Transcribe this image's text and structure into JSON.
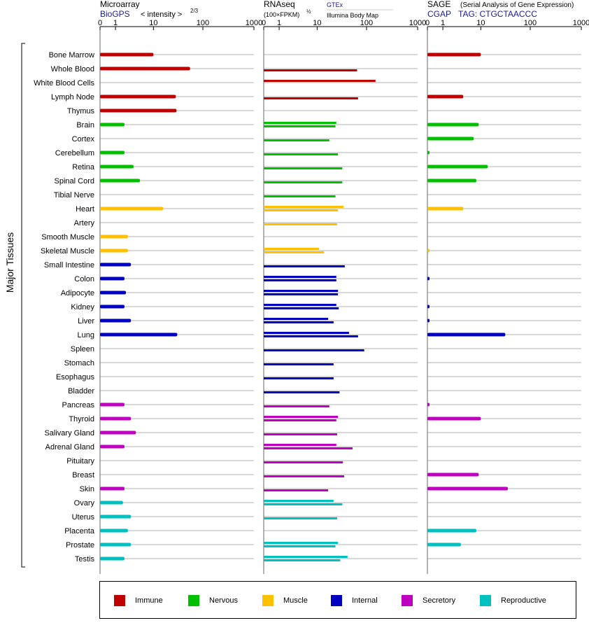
{
  "legend": [
    {
      "label": "Immune",
      "color": "#c00000"
    },
    {
      "label": "Nervous",
      "color": "#00c000"
    },
    {
      "label": "Muscle",
      "color": "#ffc000"
    },
    {
      "label": "Internal",
      "color": "#0000c0"
    },
    {
      "label": "Secretory",
      "color": "#c000c0"
    },
    {
      "label": "Reproductive",
      "color": "#00c0c0"
    }
  ],
  "chart_data": {
    "type": "bar",
    "ylabel": "Major Tissues",
    "categories": [
      "Bone Marrow",
      "Whole Blood",
      "White Blood Cells",
      "Lymph Node",
      "Thymus",
      "Brain",
      "Cortex",
      "Cerebellum",
      "Retina",
      "Spinal Cord",
      "Tibial Nerve",
      "Heart",
      "Artery",
      "Smooth Muscle",
      "Skeletal Muscle",
      "Small Intestine",
      "Colon",
      "Adipocyte",
      "Kidney",
      "Liver",
      "Lung",
      "Spleen",
      "Stomach",
      "Esophagus",
      "Bladder",
      "Pancreas",
      "Thyroid",
      "Salivary Gland",
      "Adrenal Gland",
      "Pituitary",
      "Breast",
      "Skin",
      "Ovary",
      "Uterus",
      "Placenta",
      "Prostate",
      "Testis"
    ],
    "groups": [
      "Immune",
      "Immune",
      "Immune",
      "Immune",
      "Immune",
      "Nervous",
      "Nervous",
      "Nervous",
      "Nervous",
      "Nervous",
      "Nervous",
      "Muscle",
      "Muscle",
      "Muscle",
      "Muscle",
      "Internal",
      "Internal",
      "Internal",
      "Internal",
      "Internal",
      "Internal",
      "Internal",
      "Internal",
      "Internal",
      "Internal",
      "Secretory",
      "Secretory",
      "Secretory",
      "Secretory",
      "Secretory",
      "Secretory",
      "Secretory",
      "Reproductive",
      "Reproductive",
      "Reproductive",
      "Reproductive",
      "Reproductive"
    ],
    "panels": [
      {
        "title": "Microarray",
        "subtitle": "BioGPS",
        "axis_note": "< intensity >",
        "axis_note_exp": "2/3",
        "ticks": [
          0,
          1,
          10,
          100,
          1000
        ],
        "xlim": [
          0,
          1000
        ],
        "series": [
          {
            "values": [
              10,
              56,
              null,
              29,
              30,
              2,
              null,
              2,
              3.5,
              5,
              null,
              16,
              null,
              2.5,
              2.5,
              3,
              2,
              2.2,
              2,
              3,
              31,
              null,
              null,
              null,
              null,
              2,
              3,
              4,
              2,
              null,
              null,
              2,
              1.8,
              3,
              2.5,
              3,
              2
            ]
          }
        ]
      },
      {
        "title": "RNAseq",
        "subtitle": "(100×FPKM)",
        "subtitle_exp": "½",
        "extra_title": "GTEx",
        "extra_label": "Illumina Body Map",
        "ticks": [
          0,
          1,
          10,
          100,
          1000
        ],
        "xlim": [
          0,
          1000
        ],
        "series": [
          {
            "name": "GTEx",
            "values": [
              null,
              null,
              150,
              null,
              null,
              25,
              null,
              null,
              null,
              null,
              null,
              35,
              null,
              null,
              11,
              null,
              25,
              27,
              25,
              17,
              45,
              null,
              null,
              null,
              null,
              null,
              27,
              null,
              25,
              null,
              null,
              null,
              22,
              null,
              null,
              27,
              42
            ]
          },
          {
            "name": "Illumina Body Map",
            "values": [
              null,
              65,
              null,
              68,
              null,
              24,
              18,
              27,
              33,
              33,
              24,
              27,
              26,
              null,
              14,
              37,
              25,
              27,
              28,
              22,
              68,
              90,
              22,
              22,
              29,
              18,
              25,
              26,
              53,
              34,
              36,
              17,
              33,
              26,
              null,
              24,
              30
            ]
          }
        ]
      },
      {
        "title": "SAGE",
        "title_note": "(Serial Analysis of Gene Expression)",
        "subtitle": "CGAP",
        "tag_label": "TAG: CTGCTAACCC",
        "ticks": [
          0,
          1,
          10,
          100,
          1000
        ],
        "xlim": [
          0,
          1000
        ],
        "series": [
          {
            "values": [
              10,
              null,
              null,
              4,
              null,
              9,
              7,
              0.1,
              14,
              8,
              null,
              4,
              null,
              null,
              0.1,
              null,
              0.1,
              null,
              0.1,
              0.1,
              32,
              null,
              null,
              null,
              null,
              0.1,
              10,
              null,
              null,
              null,
              9,
              36,
              null,
              null,
              8,
              3.5,
              null
            ]
          }
        ]
      }
    ]
  }
}
